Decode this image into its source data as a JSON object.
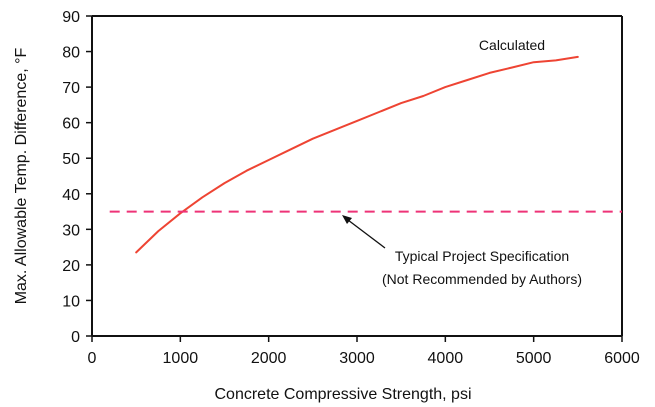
{
  "chart_data": {
    "type": "line",
    "title": "",
    "xlabel": "Concrete Compressive Strength, psi",
    "ylabel": "Max. Allowable Temp. Difference, °F",
    "xlim": [
      0,
      6000
    ],
    "ylim": [
      0,
      90
    ],
    "x_ticks": [
      0,
      1000,
      2000,
      3000,
      4000,
      5000,
      6000
    ],
    "y_ticks": [
      0,
      10,
      20,
      30,
      40,
      50,
      60,
      70,
      80,
      90
    ],
    "grid": false,
    "series": [
      {
        "name": "Calculated",
        "style": "solid",
        "color": "#ee4433",
        "x": [
          500,
          750,
          1000,
          1250,
          1500,
          1750,
          2000,
          2250,
          2500,
          2750,
          3000,
          3250,
          3500,
          3750,
          4000,
          4250,
          4500,
          4750,
          5000,
          5250,
          5500
        ],
        "y": [
          23.5,
          29.5,
          34.5,
          39.0,
          43.0,
          46.5,
          49.5,
          52.5,
          55.5,
          58.0,
          60.5,
          63.0,
          65.5,
          67.5,
          70.0,
          72.0,
          74.0,
          75.5,
          77.0,
          77.5,
          78.5
        ]
      },
      {
        "name": "Typical Project Specification (Not Recommended by Authors)",
        "style": "dashed",
        "color": "#ee3377",
        "x": [
          200,
          6000
        ],
        "y": [
          35,
          35
        ]
      }
    ],
    "annotations": [
      {
        "text": "Calculated"
      },
      {
        "text": "Typical Project Specification"
      },
      {
        "text": "(Not Recommended by Authors)"
      }
    ]
  }
}
